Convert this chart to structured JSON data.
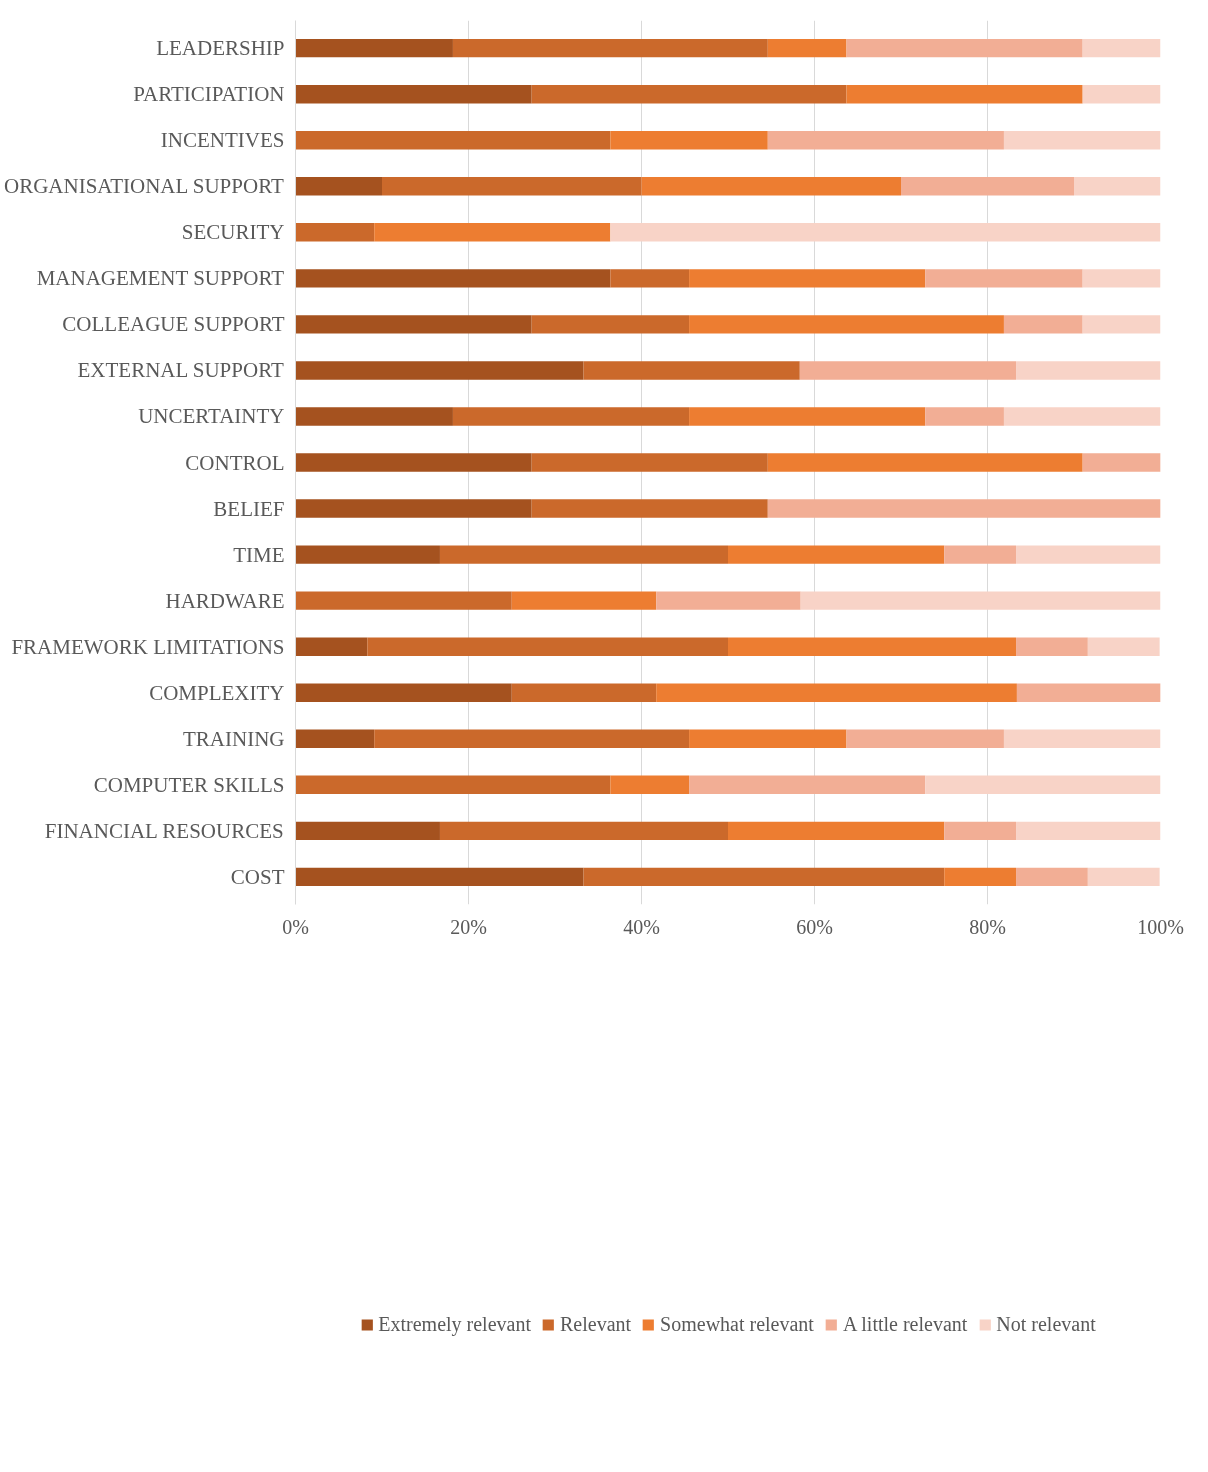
{
  "chart_data": {
    "type": "bar",
    "orientation": "horizontal",
    "stacked": true,
    "categories": [
      "LEADERSHIP",
      "PARTICIPATION",
      "INCENTIVES",
      "ORGANISATIONAL SUPPORT",
      "SECURITY",
      "MANAGEMENT SUPPORT",
      "COLLEAGUE SUPPORT",
      "EXTERNAL SUPPORT",
      "UNCERTAINTY",
      "CONTROL",
      "BELIEF",
      "TIME",
      "HARDWARE",
      "FRAMEWORK LIMITATIONS",
      "COMPLEXITY",
      "TRAINING",
      "COMPUTER SKILLS",
      "FINANCIAL RESOURCES",
      "COST"
    ],
    "series": [
      {
        "name": "Extremely relevant",
        "color": "#a5521f",
        "values": [
          18.2,
          27.3,
          0,
          10,
          0,
          36.4,
          27.3,
          33.3,
          18.2,
          27.3,
          27.3,
          16.7,
          0,
          8.3,
          25,
          9.1,
          0,
          16.7,
          33.3
        ]
      },
      {
        "name": "Relevant",
        "color": "#cb692b",
        "values": [
          36.4,
          36.4,
          36.4,
          30,
          9.1,
          9.1,
          18.2,
          25,
          27.3,
          27.3,
          27.3,
          33.3,
          25,
          41.7,
          16.7,
          36.4,
          36.4,
          33.3,
          41.7
        ]
      },
      {
        "name": "Somewhat relevant",
        "color": "#ed7d31",
        "values": [
          9.1,
          27.3,
          18.2,
          30,
          27.3,
          27.3,
          36.4,
          0,
          27.3,
          36.4,
          0,
          25,
          16.7,
          33.3,
          41.7,
          18.2,
          9.1,
          25,
          8.3
        ]
      },
      {
        "name": "A little relevant",
        "color": "#f2ae95",
        "values": [
          27.3,
          0,
          27.3,
          20,
          0,
          18.2,
          9.1,
          25,
          9.1,
          9.1,
          45.5,
          8.3,
          16.7,
          8.3,
          16.7,
          18.2,
          27.3,
          8.3,
          8.3
        ]
      },
      {
        "name": "Not relevant",
        "color": "#f8d3c7",
        "values": [
          9.1,
          9.1,
          18.2,
          10,
          63.6,
          9.1,
          9.1,
          16.7,
          18.2,
          0,
          0,
          16.7,
          41.7,
          8.3,
          0,
          18.2,
          27.3,
          16.7,
          8.3
        ]
      }
    ],
    "xlim": [
      0,
      100
    ],
    "xticks": [
      {
        "value": 0,
        "label": "0%"
      },
      {
        "value": 20,
        "label": "20%"
      },
      {
        "value": 40,
        "label": "40%"
      },
      {
        "value": 60,
        "label": "60%"
      },
      {
        "value": 80,
        "label": "80%"
      },
      {
        "value": 100,
        "label": "100%"
      }
    ],
    "grid": "x",
    "legend": "bottom"
  }
}
